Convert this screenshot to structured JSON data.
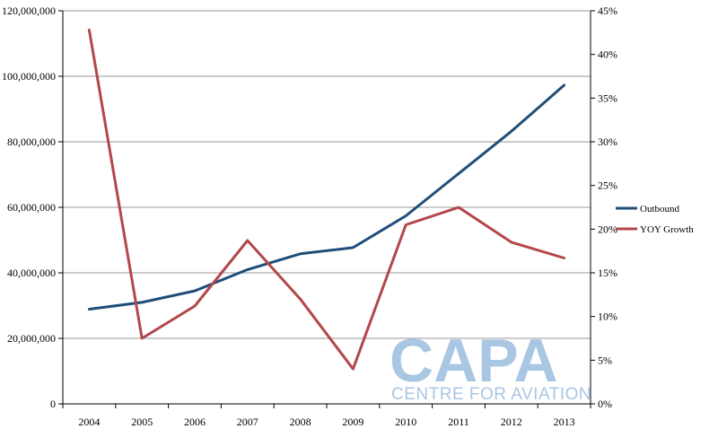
{
  "chart_data": {
    "type": "line",
    "categories": [
      "2004",
      "2005",
      "2006",
      "2007",
      "2008",
      "2009",
      "2010",
      "2011",
      "2012",
      "2013"
    ],
    "series": [
      {
        "name": "Outbound",
        "axis": "left",
        "color": "#1f4e79",
        "values": [
          28900000,
          31000000,
          34500000,
          41000000,
          45800000,
          47700000,
          57400000,
          70300000,
          83200000,
          97300000
        ]
      },
      {
        "name": "YOY Growth",
        "axis": "right",
        "color": "#b3474a",
        "values": [
          0.428,
          0.075,
          0.112,
          0.187,
          0.12,
          0.04,
          0.205,
          0.225,
          0.185,
          0.167
        ]
      }
    ],
    "y_left": {
      "ylim": [
        0,
        120000000
      ],
      "ticks": [
        "0",
        "20,000,000",
        "40,000,000",
        "60,000,000",
        "80,000,000",
        "100,000,000",
        "120,000,000"
      ]
    },
    "y_right": {
      "ylim": [
        0,
        0.45
      ],
      "ticks": [
        "0%",
        "5%",
        "10%",
        "15%",
        "20%",
        "25%",
        "30%",
        "35%",
        "40%",
        "45%"
      ]
    },
    "grid": true,
    "legend_position": "right"
  },
  "watermark": {
    "logo": "CAPA",
    "tagline": "CENTRE FOR AVIATION"
  }
}
